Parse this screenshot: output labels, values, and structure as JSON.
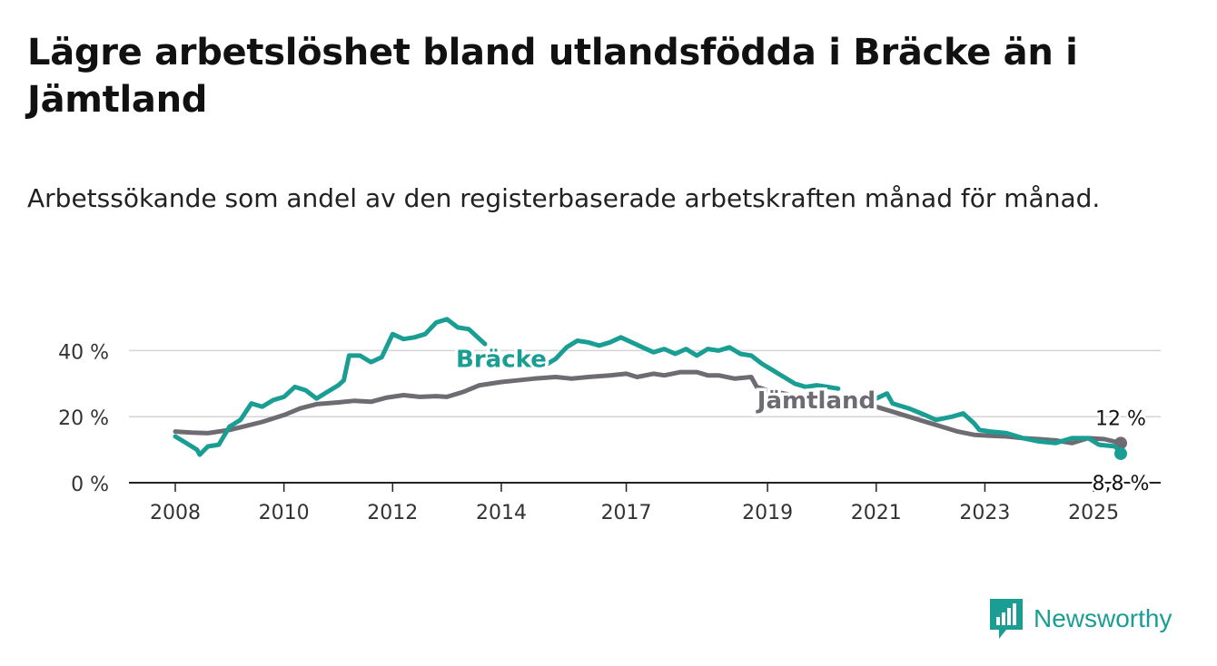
{
  "title": "Lägre arbetslöshet bland utlandsfödda i Bräcke än i Jämtland",
  "subtitle": "Arbetssökande som andel av den registerbaserade arbetskraften månad för månad.",
  "brand": {
    "name": "Newsworthy",
    "color": "#1a9e94",
    "icon": "bar-chart-logo-icon"
  },
  "chart_data": {
    "type": "line",
    "title": "Lägre arbetslöshet bland utlandsfödda i Bräcke än i Jämtland",
    "subtitle": "Arbetssökande som andel av den registerbaserade arbetskraften månad för månad.",
    "xlabel": "",
    "ylabel": "",
    "xlim": [
      2008,
      2025.4
    ],
    "ylim": [
      0,
      50
    ],
    "x_ticks": [
      "2008",
      "2010",
      "2012",
      "2014",
      "2017",
      "2019",
      "2021",
      "2023",
      "2025"
    ],
    "x_tick_values": [
      2008,
      2010,
      2012,
      2014,
      2016.3,
      2018.9,
      2020.9,
      2022.9,
      2024.9
    ],
    "y_ticks": [
      "0 %",
      "20 %",
      "40 %"
    ],
    "y_tick_values": [
      0,
      20,
      40
    ],
    "grid": true,
    "series": [
      {
        "name": "Jämtland",
        "color": "#6e6b73",
        "end_label": "12 %",
        "points": [
          [
            2008.0,
            15.5
          ],
          [
            2008.3,
            15.2
          ],
          [
            2008.6,
            15.0
          ],
          [
            2009.0,
            16.0
          ],
          [
            2009.3,
            17.2
          ],
          [
            2009.6,
            18.4
          ],
          [
            2010.0,
            20.5
          ],
          [
            2010.3,
            22.5
          ],
          [
            2010.6,
            23.8
          ],
          [
            2011.0,
            24.3
          ],
          [
            2011.3,
            24.8
          ],
          [
            2011.6,
            24.5
          ],
          [
            2011.9,
            25.8
          ],
          [
            2012.2,
            26.5
          ],
          [
            2012.5,
            26.0
          ],
          [
            2012.8,
            26.2
          ],
          [
            2013.0,
            26.0
          ],
          [
            2013.3,
            27.5
          ],
          [
            2013.6,
            29.5
          ],
          [
            2014.0,
            30.5
          ],
          [
            2014.3,
            31.0
          ],
          [
            2014.6,
            31.5
          ],
          [
            2015.0,
            32.0
          ],
          [
            2015.3,
            31.5
          ],
          [
            2015.6,
            32.0
          ],
          [
            2016.0,
            32.5
          ],
          [
            2016.3,
            33.0
          ],
          [
            2016.5,
            32.0
          ],
          [
            2016.8,
            33.0
          ],
          [
            2017.0,
            32.5
          ],
          [
            2017.3,
            33.5
          ],
          [
            2017.6,
            33.5
          ],
          [
            2017.8,
            32.5
          ],
          [
            2018.0,
            32.5
          ],
          [
            2018.3,
            31.5
          ],
          [
            2018.6,
            32.0
          ],
          [
            2018.7,
            29.0
          ],
          [
            2018.9,
            28.0
          ],
          [
            2019.2,
            27.0
          ],
          [
            2019.5,
            26.0
          ],
          [
            2019.8,
            25.5
          ],
          [
            2020.0,
            26.0
          ],
          [
            2020.3,
            25.0
          ],
          [
            2020.6,
            24.0
          ],
          [
            2020.9,
            23.0
          ],
          [
            2021.2,
            21.5
          ],
          [
            2021.5,
            20.0
          ],
          [
            2021.8,
            18.5
          ],
          [
            2022.1,
            17.0
          ],
          [
            2022.4,
            15.5
          ],
          [
            2022.7,
            14.5
          ],
          [
            2023.0,
            14.2
          ],
          [
            2023.3,
            14.0
          ],
          [
            2023.6,
            13.5
          ],
          [
            2023.9,
            13.2
          ],
          [
            2024.2,
            12.8
          ],
          [
            2024.5,
            12.0
          ],
          [
            2024.8,
            13.5
          ],
          [
            2025.1,
            13.2
          ],
          [
            2025.4,
            12.0
          ]
        ]
      },
      {
        "name": "Bräcke",
        "color": "#1a9e94",
        "end_label": "8,8 %",
        "segments": [
          [
            [
              2008.0,
              14.0
            ],
            [
              2008.2,
              12.0
            ],
            [
              2008.4,
              10.0
            ],
            [
              2008.45,
              8.5
            ],
            [
              2008.6,
              11.0
            ],
            [
              2008.8,
              11.5
            ],
            [
              2009.0,
              17.0
            ],
            [
              2009.2,
              19.0
            ],
            [
              2009.4,
              24.0
            ],
            [
              2009.6,
              23.0
            ],
            [
              2009.8,
              25.0
            ],
            [
              2010.0,
              26.0
            ],
            [
              2010.2,
              29.0
            ],
            [
              2010.4,
              28.0
            ],
            [
              2010.6,
              25.5
            ],
            [
              2010.8,
              27.5
            ],
            [
              2011.0,
              29.5
            ],
            [
              2011.1,
              31.0
            ],
            [
              2011.2,
              38.5
            ],
            [
              2011.4,
              38.5
            ],
            [
              2011.6,
              36.5
            ],
            [
              2011.8,
              38.0
            ],
            [
              2012.0,
              45.0
            ],
            [
              2012.2,
              43.5
            ],
            [
              2012.4,
              44.0
            ],
            [
              2012.6,
              45.0
            ],
            [
              2012.8,
              48.5
            ],
            [
              2013.0,
              49.5
            ],
            [
              2013.2,
              47.0
            ],
            [
              2013.4,
              46.5
            ],
            [
              2013.6,
              43.5
            ],
            [
              2013.7,
              42.0
            ]
          ],
          [
            [
              2014.8,
              35.5
            ],
            [
              2015.0,
              37.5
            ],
            [
              2015.2,
              41.0
            ],
            [
              2015.4,
              43.0
            ],
            [
              2015.6,
              42.5
            ],
            [
              2015.8,
              41.5
            ],
            [
              2016.0,
              42.5
            ],
            [
              2016.2,
              44.0
            ],
            [
              2016.4,
              42.5
            ],
            [
              2016.6,
              41.0
            ],
            [
              2016.8,
              39.5
            ],
            [
              2017.0,
              40.5
            ],
            [
              2017.2,
              39.0
            ],
            [
              2017.4,
              40.5
            ],
            [
              2017.6,
              38.5
            ],
            [
              2017.8,
              40.5
            ],
            [
              2018.0,
              40.0
            ],
            [
              2018.2,
              41.0
            ],
            [
              2018.4,
              39.0
            ],
            [
              2018.6,
              38.5
            ],
            [
              2018.8,
              36.0
            ],
            [
              2019.0,
              34.0
            ],
            [
              2019.2,
              32.0
            ],
            [
              2019.4,
              30.0
            ],
            [
              2019.6,
              29.0
            ],
            [
              2019.8,
              29.5
            ],
            [
              2020.0,
              29.0
            ],
            [
              2020.2,
              28.5
            ]
          ],
          [
            [
              2020.9,
              25.5
            ],
            [
              2021.1,
              27.0
            ],
            [
              2021.2,
              24.0
            ],
            [
              2021.5,
              22.5
            ],
            [
              2021.8,
              20.5
            ],
            [
              2022.0,
              19.0
            ],
            [
              2022.3,
              20.0
            ],
            [
              2022.5,
              21.0
            ],
            [
              2022.7,
              18.0
            ],
            [
              2022.8,
              16.0
            ],
            [
              2023.0,
              15.5
            ],
            [
              2023.3,
              15.0
            ],
            [
              2023.6,
              13.5
            ],
            [
              2023.9,
              12.5
            ],
            [
              2024.2,
              12.0
            ],
            [
              2024.5,
              13.5
            ],
            [
              2024.8,
              13.5
            ],
            [
              2025.0,
              11.5
            ],
            [
              2025.3,
              11.0
            ],
            [
              2025.4,
              8.8
            ]
          ]
        ]
      }
    ],
    "labels": [
      {
        "text": "Bräcke",
        "series": "Bräcke",
        "x": 2014.0,
        "y": 37.5
      },
      {
        "text": "Jämtland",
        "series": "Jämtland",
        "x": 2019.8,
        "y": 25.0
      }
    ]
  }
}
